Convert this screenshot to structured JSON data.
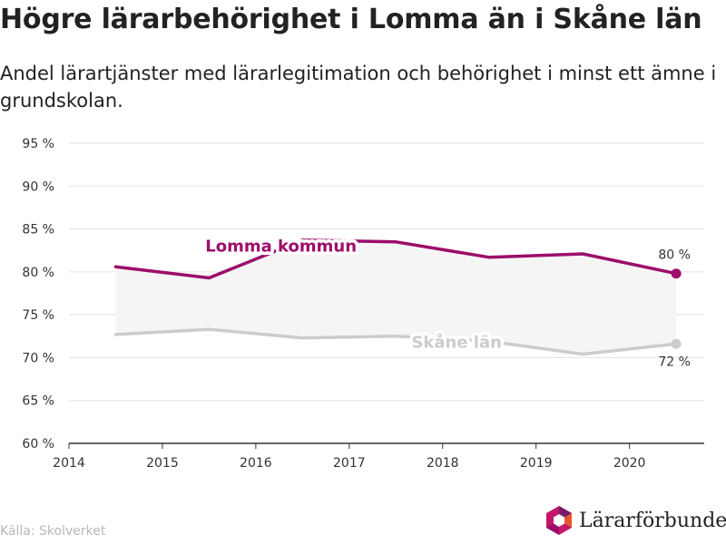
{
  "header": {
    "title": "Högre lärarbehörighet i Lomma än i Skåne län",
    "subtitle": "Andel lärartjänster med lärarlegitimation och behörighet i minst ett ämne i grundskolan."
  },
  "footer": {
    "source": "Källa: Skolverket",
    "logo_text": "Lärarförbundet",
    "logo_icon": "hexagon-logo-icon"
  },
  "chart_data": {
    "type": "line",
    "xlim": [
      2014,
      2020.8
    ],
    "ylim": [
      60,
      95
    ],
    "x_ticks": [
      2014,
      2015,
      2016,
      2017,
      2018,
      2019,
      2020
    ],
    "y_ticks": [
      {
        "value": 60,
        "label": "60 %"
      },
      {
        "value": 65,
        "label": "65 %"
      },
      {
        "value": 70,
        "label": "70 %"
      },
      {
        "value": 75,
        "label": "75 %"
      },
      {
        "value": 80,
        "label": "80 %"
      },
      {
        "value": 85,
        "label": "85 %"
      },
      {
        "value": 90,
        "label": "90 %"
      },
      {
        "value": 95,
        "label": "95 %"
      }
    ],
    "grid": true,
    "series": [
      {
        "name": "Lomma kommun",
        "color": "#9c0d6a",
        "x": [
          2014.5,
          2015.5,
          2016.5,
          2017.5,
          2018.5,
          2019.5,
          2020.5
        ],
        "y": [
          80.6,
          79.3,
          83.7,
          83.5,
          81.7,
          82.1,
          79.8
        ],
        "end_label": "80 %"
      },
      {
        "name": "Skåne län",
        "color": "#cccccc",
        "x": [
          2014.5,
          2015.5,
          2016.5,
          2017.5,
          2018.5,
          2019.5,
          2020.5
        ],
        "y": [
          72.7,
          73.3,
          72.3,
          72.5,
          71.9,
          70.4,
          71.6
        ],
        "end_label": "72 %"
      }
    ],
    "band_color": "#f5f5f5"
  }
}
